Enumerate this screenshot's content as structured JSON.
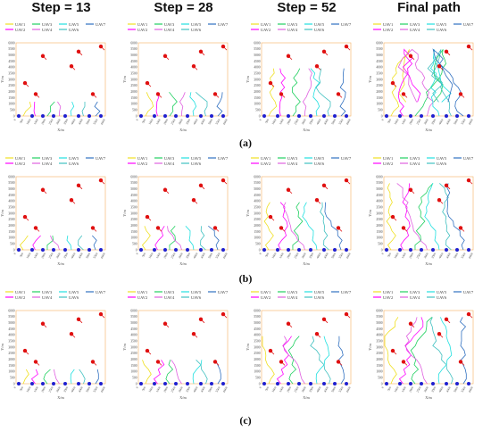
{
  "column_titles": [
    "Step = 13",
    "Step = 28",
    "Step = 52",
    "Final path"
  ],
  "row_labels": [
    "(a)",
    "(b)",
    "(c)"
  ],
  "panel": {
    "legend_items": [
      "UAV1",
      "UAV3",
      "UAV5",
      "UAV7",
      "UAV2",
      "UAV4",
      "UAV6"
    ],
    "xlabel": "X/m",
    "ylabel": "Y/m",
    "y_ticks": [
      "0",
      "500",
      "1000",
      "1500",
      "2000",
      "2500",
      "3000",
      "3500",
      "4000",
      "4500",
      "5000",
      "5500",
      "6000"
    ],
    "x_ticks": [
      "0",
      "500",
      "1000",
      "1500",
      "2000",
      "2500",
      "3000",
      "3500",
      "4000",
      "4500",
      "5000",
      "5500",
      "6000"
    ]
  },
  "uav_colors": {
    "UAV1": "#f0e020",
    "UAV2": "#ff00ff",
    "UAV3": "#20d060",
    "UAV4": "#e060e0",
    "UAV5": "#20e0e0",
    "UAV6": "#40c0c0",
    "UAV7": "#3070c0"
  }
}
